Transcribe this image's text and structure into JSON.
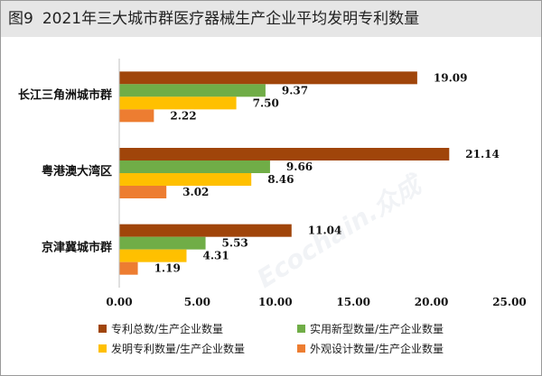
{
  "header": {
    "fig_number": "图9",
    "title": "2021年三大城市群医疗器械生产企业平均发明专利数量"
  },
  "watermark": "Ecochain.众成",
  "chart_data": {
    "type": "bar",
    "orientation": "horizontal",
    "categories": [
      "长江三角洲城市群",
      "粤港澳大湾区",
      "京津冀城市群"
    ],
    "series": [
      {
        "name": "专利总数/生产企业数量",
        "color": "#a0450a",
        "values": [
          19.09,
          21.14,
          11.04
        ]
      },
      {
        "name": "实用新型数量/生产企业数量",
        "color": "#70ad47",
        "values": [
          9.37,
          9.66,
          5.53
        ]
      },
      {
        "name": "发明专利数量/生产企业数量",
        "color": "#ffc000",
        "values": [
          7.5,
          8.46,
          4.31
        ]
      },
      {
        "name": "外观设计数量/生产企业数量",
        "color": "#ed7d31",
        "values": [
          2.22,
          3.02,
          1.19
        ]
      }
    ],
    "xlim": [
      0,
      25
    ],
    "xticks": [
      "0.00",
      "5.00",
      "10.00",
      "15.00",
      "20.00",
      "25.00"
    ],
    "grid": false,
    "legend_position": "bottom"
  }
}
